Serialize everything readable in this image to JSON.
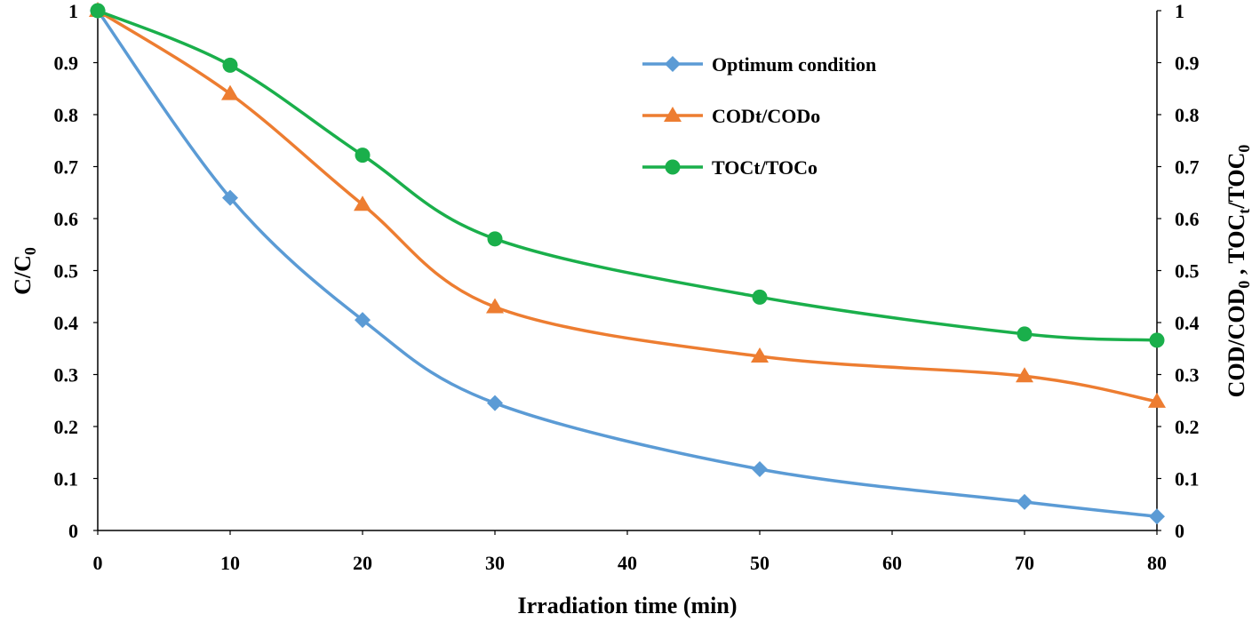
{
  "chart_data": {
    "type": "line",
    "x": [
      0,
      10,
      20,
      30,
      50,
      70,
      80
    ],
    "xlim": [
      0,
      80
    ],
    "x_ticks": [
      0,
      10,
      20,
      30,
      40,
      50,
      60,
      70,
      80
    ],
    "ylim": [
      0,
      1
    ],
    "y_ticks": [
      0,
      0.1,
      0.2,
      0.3,
      0.4,
      0.5,
      0.6,
      0.7,
      0.8,
      0.9,
      1
    ],
    "xlabel": "Irradiation  time (min)",
    "ylabel": {
      "main": "C/C",
      "sub": "0"
    },
    "ylabel_right": {
      "p1": "COD/COD",
      "s1": "0",
      "p2": " , TOC",
      "s2": "t",
      "p3": "/TOC",
      "s3": "0"
    },
    "grid": false,
    "legend_position": "top-center",
    "series": [
      {
        "name": "Optimum condition",
        "marker": "diamond",
        "color": "#5B9BD5",
        "values": [
          1.0,
          0.64,
          0.405,
          0.245,
          0.118,
          0.055,
          0.027
        ]
      },
      {
        "name": "CODt/CODo",
        "marker": "triangle",
        "color": "#ED7D31",
        "values": [
          1.0,
          0.84,
          0.627,
          0.43,
          0.335,
          0.297,
          0.248
        ]
      },
      {
        "name": "TOCt/TOCo",
        "marker": "circle",
        "color": "#1AAF4B",
        "values": [
          1.0,
          0.895,
          0.722,
          0.561,
          0.449,
          0.378,
          0.366
        ]
      }
    ]
  }
}
